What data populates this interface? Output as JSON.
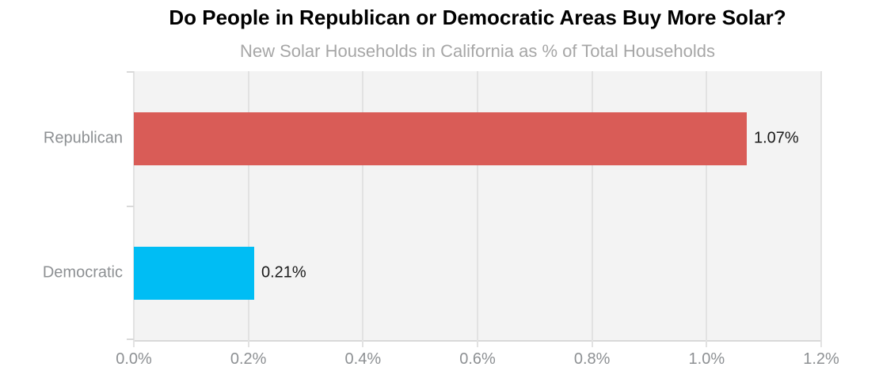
{
  "chart_data": {
    "type": "bar",
    "orientation": "horizontal",
    "title": "Do People in Republican or Democratic Areas Buy More Solar?",
    "subtitle": "New Solar Households in California as % of Total Households",
    "categories": [
      "Republican",
      "Democratic"
    ],
    "values": [
      1.07,
      0.21
    ],
    "value_labels": [
      "1.07%",
      "0.21%"
    ],
    "bar_colors": [
      "#d95c57",
      "#00bdf4"
    ],
    "xlabel": "",
    "ylabel": "",
    "xlim": [
      0,
      1.2
    ],
    "x_ticks": [
      "0.0%",
      "0.2%",
      "0.4%",
      "0.6%",
      "0.8%",
      "1.0%",
      "1.2%"
    ],
    "x_tick_values": [
      0,
      0.2,
      0.4,
      0.6,
      0.8,
      1.0,
      1.2
    ],
    "grid": true,
    "legend": false,
    "colors": {
      "plot_background": "#f3f3f3",
      "gridline": "#e2e2e2",
      "axis_line": "#d9d9d9",
      "tick_label_text": "#8d9093",
      "category_label_text": "#8d9093",
      "value_label_text": "#1a1a1a",
      "title_text": "#000000",
      "subtitle_text": "#a6a6a6"
    }
  }
}
